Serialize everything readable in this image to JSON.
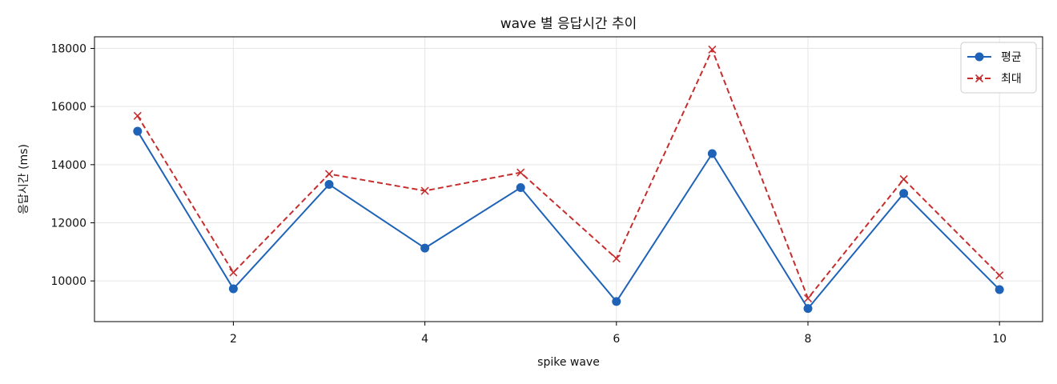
{
  "chart_data": {
    "type": "line",
    "title": "wave 별 응답시간 추이",
    "xlabel": "spike wave",
    "ylabel": "응답시간 (ms)",
    "x": [
      1,
      2,
      3,
      4,
      5,
      6,
      7,
      8,
      9,
      10
    ],
    "xlim": [
      0.55,
      10.45
    ],
    "ylim": [
      8600,
      18400
    ],
    "xticks": [
      2,
      4,
      6,
      8,
      10
    ],
    "yticks": [
      10000,
      12000,
      14000,
      16000,
      18000
    ],
    "grid": true,
    "legend_position": "top-right",
    "series": [
      {
        "name": "평균",
        "color": "#1f63b8",
        "line_style": "solid",
        "marker": "circle",
        "values": [
          15150,
          9730,
          13320,
          11130,
          13210,
          9290,
          14380,
          9050,
          13010,
          9700
        ]
      },
      {
        "name": "최대",
        "color": "#c62e2e",
        "line_style": "dashed",
        "marker": "x",
        "values": [
          15680,
          10290,
          13680,
          13100,
          13730,
          10770,
          17960,
          9400,
          13500,
          10190
        ]
      }
    ]
  }
}
